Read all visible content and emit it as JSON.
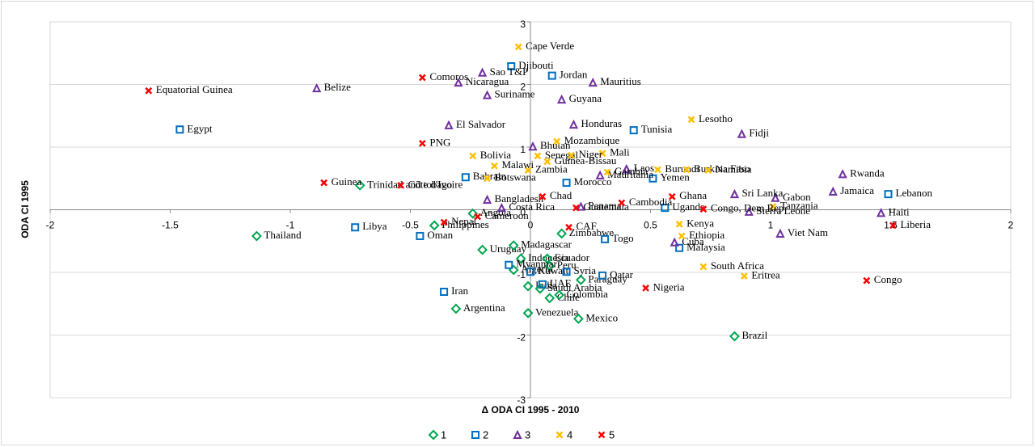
{
  "chart_data": {
    "type": "scatter",
    "xlabel": "Δ ODA CI  1995 - 2010",
    "ylabel": "ODA CI 1995",
    "xlim": [
      -2,
      2
    ],
    "ylim": [
      -3,
      3
    ],
    "xticks": [
      -2,
      -1.5,
      -1,
      -0.5,
      0,
      0.5,
      1,
      1.5,
      2
    ],
    "yticks": [
      -3,
      -2,
      -1,
      0,
      1,
      2,
      3
    ],
    "grid": true,
    "legend": "bottom",
    "series": [
      {
        "name": "1",
        "color": "#00a550",
        "marker": "diamond",
        "labels": [
          "Thailand",
          "Trinidad and tobago",
          "Philippines",
          "Angola",
          "Uruguay",
          "Madagascar",
          "Indonesia",
          "Ecuador",
          "Algeria",
          "Zimbabwe",
          "Peru",
          "Paraguay",
          "India",
          "Saudi Arabia",
          "Chile",
          "Colombia",
          "Venezuela",
          "Argentina",
          "Mexico",
          "Brazil"
        ],
        "x": [
          -1.14,
          -0.71,
          -0.4,
          -0.24,
          -0.2,
          -0.07,
          -0.04,
          0.07,
          -0.07,
          0.13,
          0.08,
          0.21,
          -0.01,
          0.04,
          0.08,
          0.12,
          -0.01,
          -0.31,
          0.2,
          0.85
        ],
        "y": [
          -0.42,
          0.39,
          -0.25,
          -0.06,
          -0.64,
          -0.57,
          -0.78,
          -0.78,
          -0.96,
          -0.38,
          -0.9,
          -1.12,
          -1.22,
          -1.26,
          -1.41,
          -1.36,
          -1.65,
          -1.58,
          -1.74,
          -2.02
        ]
      },
      {
        "name": "2",
        "color": "#0070c0",
        "marker": "square",
        "labels": [
          "Egypt",
          "Djibouti",
          "Jordan",
          "Tunisia",
          "Libya",
          "Oman",
          "Bahrain",
          "Morocco",
          "Yemen",
          "Uganda",
          "Lebanon",
          "Togo",
          "Malaysia",
          "Myanmar",
          "Kuwait",
          "Syria",
          "UAE",
          "Qatar",
          "Iran"
        ],
        "x": [
          -1.46,
          -0.08,
          0.09,
          0.43,
          -0.73,
          -0.46,
          -0.27,
          0.15,
          0.51,
          0.56,
          1.49,
          0.31,
          0.62,
          -0.09,
          0.0,
          0.15,
          0.05,
          0.3,
          -0.36
        ],
        "y": [
          1.28,
          2.29,
          2.14,
          1.27,
          -0.28,
          -0.42,
          0.52,
          0.43,
          0.5,
          0.03,
          0.25,
          -0.47,
          -0.61,
          -0.88,
          -0.99,
          -0.99,
          -1.19,
          -1.05,
          -1.31
        ]
      },
      {
        "name": "3",
        "color": "#7030a0",
        "marker": "triangle",
        "labels": [
          "Belize",
          "Sao T&P",
          "Nicaragua",
          "Suriname",
          "Mauritius",
          "Guyana",
          "El Salvador",
          "Honduras",
          "Bhutan",
          "Fidji",
          "Laos",
          "Mauritania",
          "Rwanda",
          "Jamaica",
          "Haiti",
          "Gabon",
          "Sri Lanka",
          "Sierra Leone",
          "Viet Nam",
          "Costa Rica",
          "Panama",
          "Bangladesh",
          "Cuba"
        ],
        "x": [
          -0.89,
          -0.2,
          -0.3,
          -0.18,
          0.26,
          0.13,
          -0.34,
          0.18,
          0.01,
          0.88,
          0.4,
          0.29,
          1.3,
          1.26,
          1.46,
          1.02,
          0.85,
          0.91,
          1.04,
          -0.12,
          0.21,
          -0.18,
          0.6
        ],
        "y": [
          1.94,
          2.19,
          2.03,
          1.83,
          2.03,
          1.76,
          1.35,
          1.36,
          1.01,
          1.21,
          0.65,
          0.55,
          0.57,
          0.29,
          -0.05,
          0.19,
          0.25,
          -0.03,
          -0.38,
          0.03,
          0.05,
          0.16,
          -0.52
        ]
      },
      {
        "name": "4",
        "color": "#ffc000",
        "marker": "x",
        "labels": [
          "Cape Verde",
          "Lesotho",
          "Mozambique",
          "Bolivia",
          "Senegal",
          "Guinea-Bissau",
          "Mali",
          "Niger",
          "Zambia",
          "Botswana",
          "Malawi",
          "Gambia",
          "Burundi",
          "Burkina Faso",
          "Namibia",
          "Kenya",
          "Ethiopia",
          "Tanzania",
          "South Africa",
          "Eritrea"
        ],
        "x": [
          -0.05,
          0.67,
          0.11,
          -0.24,
          0.03,
          0.07,
          0.3,
          0.17,
          -0.01,
          -0.18,
          -0.15,
          0.32,
          0.53,
          0.65,
          0.74,
          0.62,
          0.63,
          1.01,
          0.72,
          0.89
        ],
        "y": [
          2.6,
          1.44,
          1.09,
          0.86,
          0.86,
          0.77,
          0.9,
          0.87,
          0.63,
          0.5,
          0.7,
          0.6,
          0.64,
          0.64,
          0.63,
          -0.23,
          -0.42,
          0.05,
          -0.91,
          -1.06
        ]
      },
      {
        "name": "5",
        "color": "#ff0000",
        "marker": "x",
        "labels": [
          "Equatorial Guinea",
          "Comoros",
          "PNG",
          "Guinea",
          "Côte d'Ivoire",
          "Nepal",
          "Cameroon",
          "Chad",
          "Guatemala",
          "CAF",
          "Cambodia",
          "Ghana",
          "Congo, Dem Rep",
          "Nigeria",
          "Congo",
          "Liberia"
        ],
        "x": [
          -1.59,
          -0.45,
          -0.45,
          -0.86,
          -0.54,
          -0.36,
          -0.22,
          0.05,
          0.19,
          0.16,
          0.38,
          0.59,
          0.72,
          0.48,
          1.4,
          1.51
        ],
        "y": [
          1.9,
          2.11,
          1.06,
          0.43,
          0.39,
          -0.2,
          -0.11,
          0.21,
          0.03,
          -0.28,
          0.11,
          0.21,
          0.01,
          -1.25,
          -1.13,
          -0.25
        ]
      }
    ]
  }
}
